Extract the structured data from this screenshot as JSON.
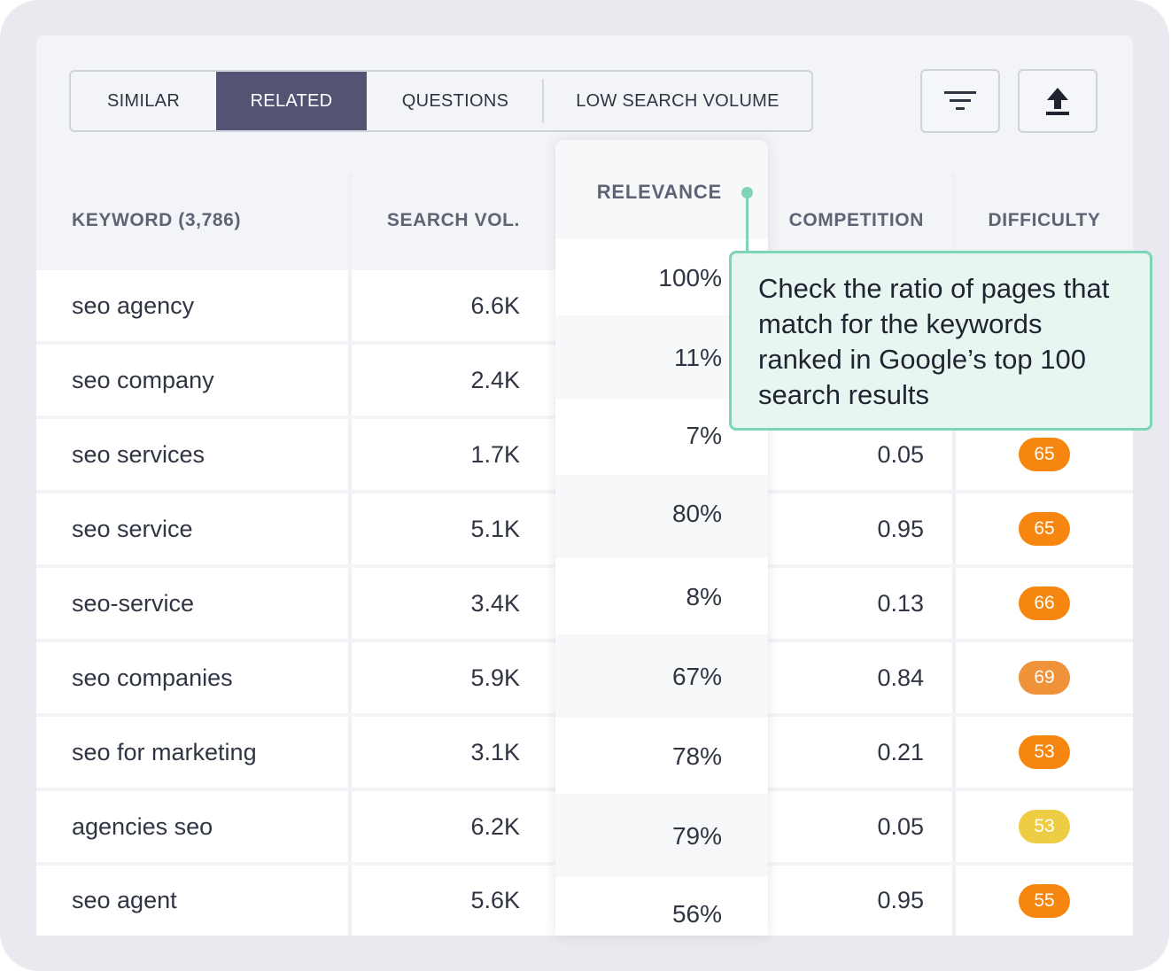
{
  "tabs": [
    {
      "label": "SIMILAR",
      "active": false
    },
    {
      "label": "RELATED",
      "active": true
    },
    {
      "label": "QUESTIONS",
      "active": false
    },
    {
      "label": "LOW SEARCH VOLUME",
      "active": false
    }
  ],
  "toolbar": {
    "filter_icon": "filter-icon",
    "export_icon": "upload-icon"
  },
  "table": {
    "headers": {
      "keyword": "KEYWORD (3,786)",
      "search_vol": "SEARCH VOL.",
      "relevance": "RELEVANCE",
      "competition": "COMPETITION",
      "difficulty": "DIFFICULTY"
    },
    "rows": [
      {
        "keyword": "seo agency",
        "search_vol": "6.6K",
        "relevance": "100%",
        "competition": "",
        "difficulty": ""
      },
      {
        "keyword": "seo company",
        "search_vol": "2.4K",
        "relevance": "11%",
        "competition": "",
        "difficulty": ""
      },
      {
        "keyword": "seo services",
        "search_vol": "1.7K",
        "relevance": "7%",
        "competition": "0.05",
        "difficulty": "65"
      },
      {
        "keyword": "seo service",
        "search_vol": "5.1K",
        "relevance": "80%",
        "competition": "0.95",
        "difficulty": "65"
      },
      {
        "keyword": "seo-service",
        "search_vol": "3.4K",
        "relevance": "8%",
        "competition": "0.13",
        "difficulty": "66"
      },
      {
        "keyword": "seo companies",
        "search_vol": "5.9K",
        "relevance": "67%",
        "competition": "0.84",
        "difficulty": "69"
      },
      {
        "keyword": "seo for marketing",
        "search_vol": "3.1K",
        "relevance": "78%",
        "competition": "0.21",
        "difficulty": "53"
      },
      {
        "keyword": "agencies seo",
        "search_vol": "6.2K",
        "relevance": "79%",
        "competition": "0.05",
        "difficulty": "53"
      },
      {
        "keyword": "seo agent",
        "search_vol": "5.6K",
        "relevance": "56%",
        "competition": "0.95",
        "difficulty": "55"
      }
    ]
  },
  "badge_colors": {
    "65": "#f6860f",
    "66": "#f6860f",
    "69": "#f0923a",
    "53a": "#f6860f",
    "53b": "#eecd45",
    "55": "#f6860f"
  },
  "tooltip": {
    "text": "Check the ratio of pages that match for the keywords ranked in Google’s top 100 search results"
  }
}
